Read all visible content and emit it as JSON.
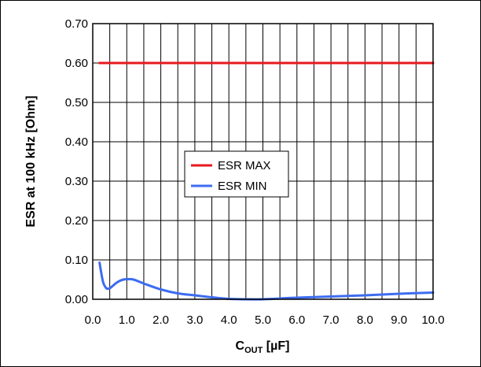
{
  "chart_data": {
    "type": "line",
    "title": "",
    "xlabel": {
      "main": "C",
      "sub": "OUT",
      "suffix": " [µF]"
    },
    "ylabel": "ESR at 100 kHz [Ohm]",
    "xlim": [
      0,
      10
    ],
    "ylim": [
      0,
      0.7
    ],
    "grid": true,
    "x_ticks": [
      0.0,
      1.0,
      2.0,
      3.0,
      4.0,
      5.0,
      6.0,
      7.0,
      8.0,
      9.0,
      10.0
    ],
    "x_tick_labels": [
      "0.0",
      "1.0",
      "2.0",
      "3.0",
      "4.0",
      "5.0",
      "6.0",
      "7.0",
      "8.0",
      "9.0",
      "10.0"
    ],
    "y_ticks": [
      0,
      0.1,
      0.2,
      0.3,
      0.4,
      0.5,
      0.6,
      0.7
    ],
    "y_tick_labels": [
      "0.00",
      "0.10",
      "0.20",
      "0.30",
      "0.40",
      "0.50",
      "0.60",
      "0.70"
    ],
    "minor_x_step": 0.5,
    "legend": {
      "placement": "center"
    },
    "series": [
      {
        "name": "ESR MAX",
        "color": "#e8191c",
        "x": [
          0.2,
          10.0
        ],
        "y": [
          0.6,
          0.6
        ]
      },
      {
        "name": "ESR MIN",
        "color": "#3d6cf0",
        "x": [
          0.2,
          0.3,
          0.4,
          0.5,
          0.6,
          0.7,
          0.8,
          0.9,
          1.0,
          1.2,
          1.5,
          2.0,
          2.5,
          3.0,
          3.5,
          4.0,
          4.5,
          5.0,
          5.5,
          6.0,
          7.0,
          8.0,
          9.0,
          10.0
        ],
        "y": [
          0.093,
          0.045,
          0.028,
          0.028,
          0.035,
          0.042,
          0.047,
          0.05,
          0.051,
          0.05,
          0.04,
          0.025,
          0.015,
          0.01,
          0.005,
          0.001,
          0.0,
          0.0,
          0.002,
          0.004,
          0.007,
          0.01,
          0.014,
          0.017
        ]
      }
    ]
  }
}
